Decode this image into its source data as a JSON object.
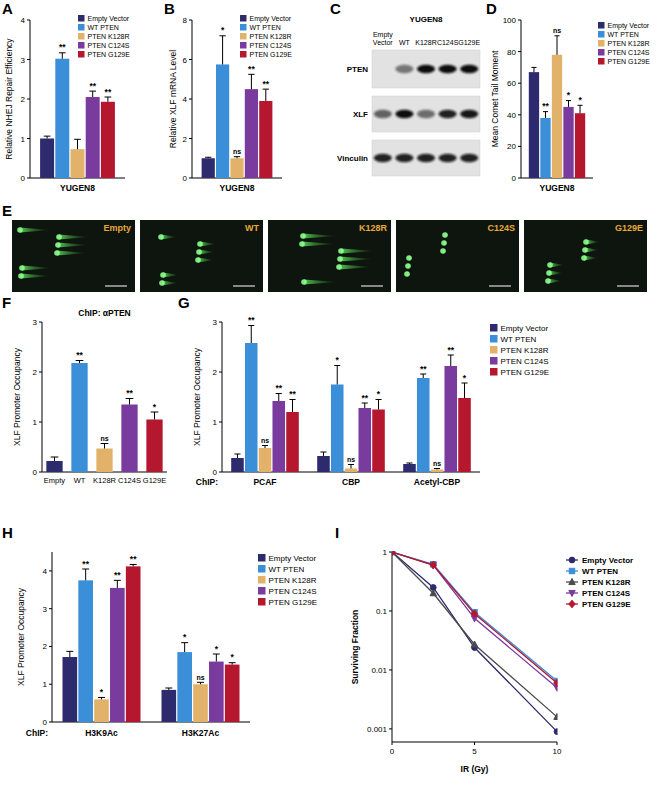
{
  "chart_data": [
    {
      "panel": "A",
      "type": "bar",
      "y_label": "Relative NHEJ Repair Efficiency",
      "categories": [
        "YUGEN8"
      ],
      "ylim": [
        0,
        4
      ],
      "yticks": [
        0,
        1,
        2,
        3,
        4
      ],
      "legend": "upper right",
      "series": [
        {
          "name": "Empty Vector",
          "color": "#2d2a6e",
          "values": [
            1.0
          ],
          "errors": [
            0.06
          ],
          "significance": [
            null
          ]
        },
        {
          "name": "WT PTEN",
          "color": "#3b8ed8",
          "values": [
            3.02
          ],
          "errors": [
            0.15
          ],
          "significance": [
            "**"
          ]
        },
        {
          "name": "PTEN K128R",
          "color": "#e3b26a",
          "values": [
            0.73
          ],
          "errors": [
            0.25
          ],
          "significance": [
            null
          ]
        },
        {
          "name": "PTEN C124S",
          "color": "#7a3b9e",
          "values": [
            2.05
          ],
          "errors": [
            0.15
          ],
          "significance": [
            "**"
          ]
        },
        {
          "name": "PTEN G129E",
          "color": "#b5172f",
          "values": [
            1.93
          ],
          "errors": [
            0.12
          ],
          "significance": [
            "**"
          ]
        }
      ]
    },
    {
      "panel": "B",
      "type": "bar",
      "y_label": "Relative XLF mRNA Level",
      "categories": [
        "YUGEN8"
      ],
      "ylim": [
        0,
        8
      ],
      "yticks": [
        0,
        2,
        4,
        6,
        8
      ],
      "legend": "upper right",
      "series": [
        {
          "name": "Empty Vector",
          "color": "#2d2a6e",
          "values": [
            1.0
          ],
          "errors": [
            0.05
          ],
          "significance": [
            null
          ]
        },
        {
          "name": "WT PTEN",
          "color": "#3b8ed8",
          "values": [
            5.75
          ],
          "errors": [
            1.45
          ],
          "significance": [
            "*"
          ]
        },
        {
          "name": "PTEN K128R",
          "color": "#e3b26a",
          "values": [
            1.0
          ],
          "errors": [
            0.08
          ],
          "significance": [
            "ns"
          ]
        },
        {
          "name": "PTEN C124S",
          "color": "#7a3b9e",
          "values": [
            4.5
          ],
          "errors": [
            0.75
          ],
          "significance": [
            "**"
          ]
        },
        {
          "name": "PTEN G129E",
          "color": "#b5172f",
          "values": [
            3.9
          ],
          "errors": [
            0.6
          ],
          "significance": [
            "**"
          ]
        }
      ]
    },
    {
      "panel": "D",
      "type": "bar",
      "y_label": "Mean Comet Tail Moment",
      "categories": [
        "YUGEN8"
      ],
      "ylim": [
        0,
        100
      ],
      "yticks": [
        0,
        20,
        40,
        60,
        80,
        100
      ],
      "legend": "right",
      "series": [
        {
          "name": "Empty Vector",
          "color": "#2d2a6e",
          "values": [
            67
          ],
          "errors": [
            3
          ],
          "significance": [
            null
          ]
        },
        {
          "name": "WT PTEN",
          "color": "#3b8ed8",
          "values": [
            38
          ],
          "errors": [
            4
          ],
          "significance": [
            "**"
          ]
        },
        {
          "name": "PTEN K128R",
          "color": "#e3b26a",
          "values": [
            78
          ],
          "errors": [
            12
          ],
          "significance": [
            "ns"
          ]
        },
        {
          "name": "PTEN C124S",
          "color": "#7a3b9e",
          "values": [
            45
          ],
          "errors": [
            4
          ],
          "significance": [
            "*"
          ]
        },
        {
          "name": "PTEN G129E",
          "color": "#b5172f",
          "values": [
            41
          ],
          "errors": [
            5
          ],
          "significance": [
            "*"
          ]
        }
      ]
    },
    {
      "panel": "F",
      "type": "bar",
      "title": "ChIP: αPTEN",
      "y_label": "XLF Promoter Occupancy",
      "categories": [
        "Empty",
        "WT",
        "K128R",
        "C124S",
        "G129E"
      ],
      "values": [
        0.22,
        2.18,
        0.47,
        1.35,
        1.05
      ],
      "errors": [
        0.08,
        0.05,
        0.1,
        0.12,
        0.15
      ],
      "significance": [
        null,
        "**",
        "ns",
        "**",
        "*"
      ],
      "colors": [
        "#2d2a6e",
        "#3b8ed8",
        "#e3b26a",
        "#7a3b9e",
        "#b5172f"
      ],
      "ylim": [
        0,
        3
      ],
      "yticks": [
        0,
        1,
        2,
        3
      ]
    },
    {
      "panel": "G",
      "type": "bar",
      "x_label": "ChIP:",
      "y_label": "XLF Promoter Occupancy",
      "categories": [
        "PCAF",
        "CBP",
        "Acetyl-CBP"
      ],
      "ylim": [
        0,
        3
      ],
      "yticks": [
        0,
        1,
        2,
        3
      ],
      "legend": "right",
      "series": [
        {
          "name": "Empty Vector",
          "color": "#2d2a6e",
          "values": [
            0.28,
            0.32,
            0.16
          ],
          "errors": [
            0.08,
            0.08,
            0.02
          ],
          "significance": [
            null,
            null,
            null
          ]
        },
        {
          "name": "WT PTEN",
          "color": "#3b8ed8",
          "values": [
            2.58,
            1.75,
            1.88
          ],
          "errors": [
            0.35,
            0.38,
            0.08
          ],
          "significance": [
            "**",
            "*",
            "**"
          ]
        },
        {
          "name": "PTEN K128R",
          "color": "#e3b26a",
          "values": [
            0.48,
            0.07,
            0.05
          ],
          "errors": [
            0.05,
            0.08,
            0.02
          ],
          "significance": [
            "ns",
            "ns",
            "ns"
          ]
        },
        {
          "name": "PTEN C124S",
          "color": "#7a3b9e",
          "values": [
            1.42,
            1.28,
            2.12
          ],
          "errors": [
            0.15,
            0.1,
            0.22
          ],
          "significance": [
            "**",
            "**",
            "**"
          ]
        },
        {
          "name": "PTEN G129E",
          "color": "#b5172f",
          "values": [
            1.2,
            1.25,
            1.48
          ],
          "errors": [
            0.25,
            0.2,
            0.3
          ],
          "significance": [
            "**",
            "*",
            "*"
          ]
        }
      ]
    },
    {
      "panel": "H",
      "type": "bar",
      "x_label": "ChIP:",
      "y_label": "XLF Promoter Occupancy",
      "categories": [
        "H3K9Ac",
        "H3K27Ac"
      ],
      "ylim": [
        0,
        4.5
      ],
      "yticks": [
        0,
        1,
        2,
        3,
        4
      ],
      "legend": "right",
      "series": [
        {
          "name": "Empty Vector",
          "color": "#2d2a6e",
          "values": [
            1.72,
            0.85
          ],
          "errors": [
            0.15,
            0.05
          ],
          "significance": [
            null,
            null
          ]
        },
        {
          "name": "WT PTEN",
          "color": "#3b8ed8",
          "values": [
            3.75,
            1.85
          ],
          "errors": [
            0.3,
            0.25
          ],
          "significance": [
            "**",
            "*"
          ]
        },
        {
          "name": "PTEN K128R",
          "color": "#e3b26a",
          "values": [
            0.6,
            1.0
          ],
          "errors": [
            0.05,
            0.05
          ],
          "significance": [
            "*",
            "ns"
          ]
        },
        {
          "name": "PTEN C124S",
          "color": "#7a3b9e",
          "values": [
            3.55,
            1.6
          ],
          "errors": [
            0.2,
            0.2
          ],
          "significance": [
            "**",
            "*"
          ]
        },
        {
          "name": "PTEN G129E",
          "color": "#b5172f",
          "values": [
            4.12,
            1.52
          ],
          "errors": [
            0.05,
            0.05
          ],
          "significance": [
            "**",
            "*"
          ]
        }
      ]
    },
    {
      "panel": "I",
      "type": "line",
      "x_label": "IR (Gy)",
      "y_label": "Surviving Fraction",
      "x": [
        0,
        2.5,
        5,
        10
      ],
      "xlim": [
        0,
        10
      ],
      "xticks": [
        0,
        5,
        10
      ],
      "ylim": [
        0.0006,
        1
      ],
      "yticks": [
        1,
        0.1,
        0.01,
        0.001
      ],
      "log": "y",
      "legend": "right",
      "series": [
        {
          "name": "Empty Vector",
          "color": "#2d2a6e",
          "marker": "circle",
          "values": [
            1,
            0.25,
            0.024,
            0.0009
          ]
        },
        {
          "name": "WT PTEN",
          "color": "#3b8ed8",
          "marker": "square",
          "values": [
            1,
            0.62,
            0.095,
            0.0065
          ]
        },
        {
          "name": "PTEN K128R",
          "color": "#4a4a4a",
          "marker": "triangle",
          "values": [
            1,
            0.2,
            0.027,
            0.0016
          ]
        },
        {
          "name": "PTEN C124S",
          "color": "#7a3b9e",
          "marker": "triangle-down",
          "values": [
            1,
            0.6,
            0.075,
            0.005
          ]
        },
        {
          "name": "PTEN G129E",
          "color": "#b5172f",
          "marker": "diamond",
          "values": [
            1,
            0.6,
            0.09,
            0.006
          ]
        }
      ]
    }
  ],
  "blot": {
    "panel": "C",
    "title": "YUGEN8",
    "lanes": [
      "Empty Vector",
      "WT",
      "K128R",
      "C124S",
      "G129E"
    ],
    "rows": [
      {
        "label": "PTEN",
        "intensity": [
          0,
          0.5,
          1,
          1,
          1
        ]
      },
      {
        "label": "XLF",
        "intensity": [
          0.6,
          1,
          0.55,
          0.9,
          0.95
        ]
      },
      {
        "label": "Vinculin",
        "intensity": [
          0.9,
          0.9,
          0.9,
          0.9,
          0.9
        ]
      }
    ]
  },
  "comets": {
    "panel": "E",
    "labels": [
      "Empty",
      "WT",
      "K128R",
      "C124S",
      "G129E"
    ]
  }
}
